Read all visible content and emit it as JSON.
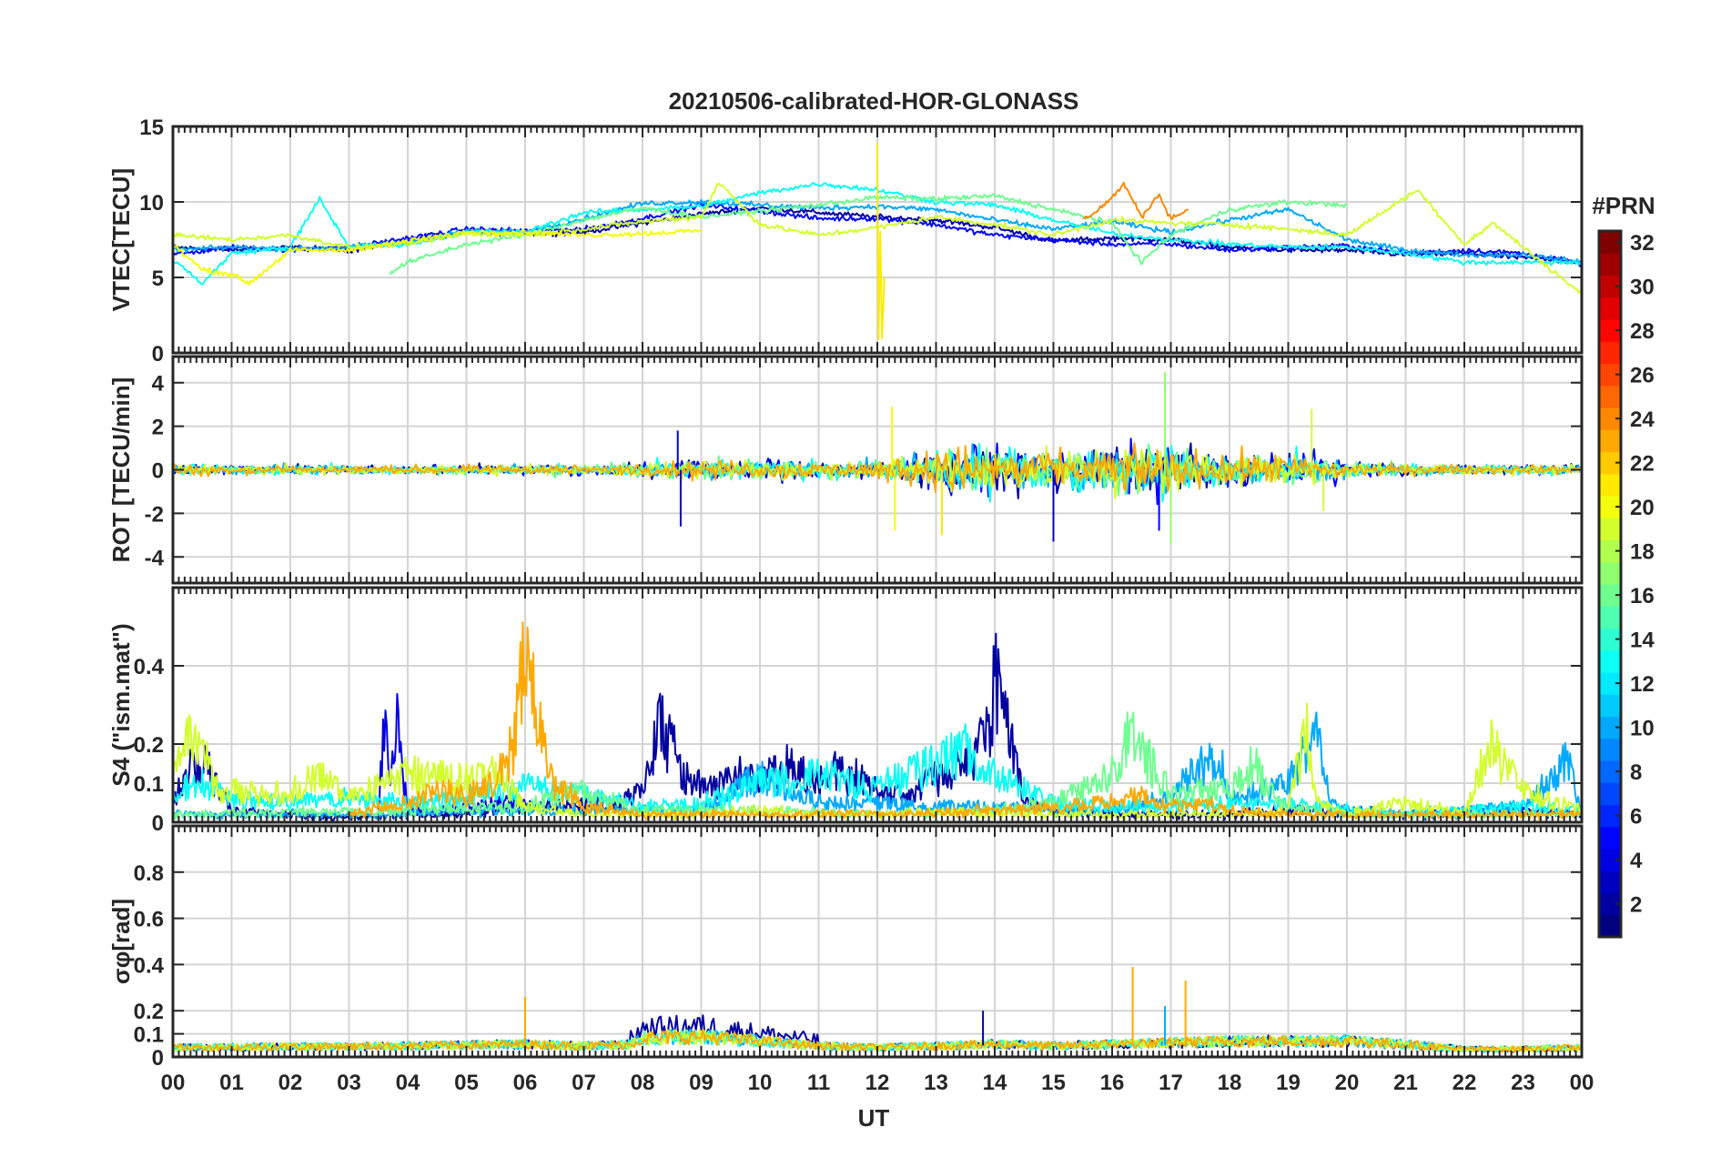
{
  "figure": {
    "title": "20210506-calibrated-HOR-GLONASS",
    "xlabel": "UT",
    "x_ticklabels": [
      "00",
      "01",
      "02",
      "03",
      "04",
      "05",
      "06",
      "07",
      "08",
      "09",
      "10",
      "11",
      "12",
      "13",
      "14",
      "15",
      "16",
      "17",
      "18",
      "19",
      "20",
      "21",
      "22",
      "23",
      "00"
    ]
  },
  "colorbar": {
    "title": "#PRN",
    "range": [
      1,
      32
    ],
    "ticks": [
      2,
      4,
      6,
      8,
      10,
      12,
      14,
      16,
      18,
      20,
      22,
      24,
      26,
      28,
      30,
      32
    ],
    "colormap": "jet",
    "levels": 32
  },
  "chart_data": [
    {
      "type": "line",
      "panel": "VTEC",
      "ylabel": "VTEC[TECU]",
      "ylim": [
        0,
        15
      ],
      "yticks": [
        0,
        5,
        10,
        15
      ],
      "xlim_hours": [
        0,
        24
      ],
      "grid": true,
      "series": [
        {
          "prn": 2,
          "x": [
            0,
            1,
            2,
            3,
            4,
            5,
            6,
            7,
            8,
            9,
            10,
            11,
            12,
            13,
            14,
            15,
            16,
            17,
            18,
            19,
            20,
            21,
            22,
            23,
            24
          ],
          "y": [
            7.0,
            6.8,
            7.0,
            6.8,
            7.4,
            8.0,
            7.9,
            8.0,
            8.6,
            9.2,
            9.6,
            9.3,
            9.0,
            8.8,
            8.3,
            7.4,
            7.6,
            7.5,
            7.0,
            6.8,
            6.8,
            6.5,
            6.6,
            6.3,
            6.0
          ]
        },
        {
          "prn": 5,
          "x": [
            0,
            1,
            2,
            3,
            4,
            5,
            6,
            7,
            8,
            9,
            10,
            11,
            12,
            13,
            14,
            15,
            16,
            17,
            18,
            19,
            20,
            21,
            22,
            23,
            24
          ],
          "y": [
            6.5,
            7.0,
            6.8,
            7.0,
            7.6,
            8.2,
            8.1,
            8.2,
            8.9,
            9.8,
            9.4,
            8.9,
            8.9,
            8.5,
            7.8,
            7.5,
            7.2,
            7.2,
            6.8,
            7.0,
            7.1,
            6.6,
            6.8,
            6.6,
            5.9
          ]
        },
        {
          "prn": 10,
          "x": [
            0,
            1,
            2,
            3,
            4,
            5,
            6,
            7,
            8,
            9,
            10,
            11,
            12,
            13,
            14,
            15,
            16,
            17,
            18,
            19,
            20,
            21,
            22,
            23,
            24
          ],
          "y": [
            6.8,
            7.0,
            6.9,
            7.0,
            7.3,
            8.1,
            8.0,
            8.9,
            9.9,
            10.0,
            9.8,
            9.6,
            9.7,
            9.5,
            8.8,
            8.2,
            8.7,
            8.0,
            8.8,
            9.5,
            7.5,
            6.8,
            6.5,
            6.5,
            6.0
          ]
        },
        {
          "prn": 13,
          "x": [
            0,
            0.5,
            1,
            2,
            2.5,
            3,
            4,
            5,
            6,
            7,
            8,
            9,
            10,
            11,
            12,
            13,
            14,
            15,
            16,
            17,
            18,
            19,
            20,
            21,
            22,
            23,
            24
          ],
          "y": [
            6.2,
            4.6,
            6.6,
            7.0,
            10.2,
            7.0,
            7.2,
            8.0,
            8.0,
            9.3,
            9.5,
            9.7,
            10.6,
            11.2,
            10.8,
            10.0,
            9.8,
            8.8,
            7.9,
            7.5,
            7.2,
            7.0,
            7.0,
            6.6,
            6.0,
            6.0,
            6.0
          ]
        },
        {
          "prn": 16,
          "x": [
            3.7,
            4,
            5,
            6,
            7,
            8,
            9,
            10,
            11,
            12,
            13,
            14,
            15,
            16,
            16.5,
            17,
            18,
            19,
            20
          ],
          "y": [
            5.3,
            6.0,
            7.2,
            7.8,
            8.8,
            9.6,
            9.0,
            9.4,
            9.8,
            10.3,
            10.2,
            10.4,
            9.5,
            8.6,
            6.0,
            7.8,
            9.5,
            10.0,
            9.8
          ]
        },
        {
          "prn": 19,
          "x": [
            0,
            1,
            2,
            3,
            4,
            5,
            6,
            7,
            8,
            9,
            9.3,
            10,
            11,
            12,
            13,
            14,
            15,
            16,
            17,
            18,
            19,
            20,
            21.2,
            22,
            22.5,
            23,
            24
          ],
          "y": [
            7.8,
            7.5,
            7.8,
            7.0,
            7.2,
            7.9,
            7.8,
            8.2,
            8.7,
            9.0,
            11.3,
            8.5,
            7.8,
            8.3,
            9.0,
            8.5,
            7.8,
            8.8,
            8.6,
            8.5,
            8.2,
            7.8,
            10.8,
            7.2,
            8.6,
            7.0,
            3.9
          ]
        },
        {
          "prn": 20,
          "x": [
            0,
            0.5,
            1,
            1.3,
            2,
            3,
            4,
            5,
            6,
            7,
            8,
            9
          ],
          "y": [
            7.2,
            5.5,
            5.2,
            4.6,
            6.8,
            6.8,
            7.4,
            8.0,
            8.0,
            7.8,
            7.9,
            8.1
          ]
        },
        {
          "prn": 24,
          "x": [
            15.5,
            15.8,
            16,
            16.2,
            16.5,
            16.8,
            17,
            17.3
          ],
          "y": [
            8.8,
            9.6,
            10.3,
            11.2,
            9.0,
            10.5,
            8.9,
            9.5
          ]
        },
        {
          "prn": 21,
          "x": [
            12.0,
            12.02,
            12.05,
            12.08,
            12.12
          ],
          "y": [
            14.0,
            1.0,
            8.0,
            1.0,
            5.0
          ]
        }
      ]
    },
    {
      "type": "line",
      "panel": "ROT",
      "ylabel": "ROT [TECU/min]",
      "ylim": [
        -5.2,
        5.2
      ],
      "yticks": [
        -4,
        -2,
        0,
        2,
        4
      ],
      "xlim_hours": [
        0,
        24
      ],
      "grid": true,
      "noise_profile_hours": [
        0,
        2,
        4,
        6,
        6.5,
        7,
        8,
        9,
        10,
        11,
        12,
        12.5,
        13,
        13.5,
        14,
        14.5,
        15,
        16,
        16.5,
        17,
        17.5,
        18,
        19,
        19.5,
        20,
        21,
        22,
        23,
        24
      ],
      "noise_profile_amplitude": [
        0.35,
        0.3,
        0.25,
        0.3,
        0.4,
        0.3,
        0.45,
        0.6,
        0.6,
        0.55,
        0.6,
        0.9,
        1.3,
        1.6,
        1.5,
        1.3,
        1.1,
        1.4,
        1.6,
        1.5,
        1.1,
        1.0,
        1.1,
        0.9,
        0.5,
        0.35,
        0.3,
        0.3,
        0.3
      ],
      "spikes": [
        {
          "x": 8.65,
          "y": -2.6,
          "prn": 3
        },
        {
          "x": 8.6,
          "y": 1.8,
          "prn": 3
        },
        {
          "x": 12.25,
          "y": 2.9,
          "prn": 20
        },
        {
          "x": 12.3,
          "y": -2.8,
          "prn": 20
        },
        {
          "x": 13.1,
          "y": -3.0,
          "prn": 21
        },
        {
          "x": 15.0,
          "y": -3.3,
          "prn": 3
        },
        {
          "x": 16.8,
          "y": -2.8,
          "prn": 5
        },
        {
          "x": 16.9,
          "y": 4.5,
          "prn": 17
        },
        {
          "x": 17.0,
          "y": -3.4,
          "prn": 17
        },
        {
          "x": 19.4,
          "y": 2.8,
          "prn": 19
        },
        {
          "x": 19.6,
          "y": -1.9,
          "prn": 19
        }
      ],
      "series_prns": [
        2,
        5,
        10,
        13,
        16,
        19,
        23
      ]
    },
    {
      "type": "line",
      "panel": "S4",
      "ylabel": "S4 (\"ism.mat\")",
      "ylim": [
        0,
        0.6
      ],
      "yticks": [
        0,
        0.1,
        0.2,
        0.4
      ],
      "xlim_hours": [
        0,
        24
      ],
      "grid": true,
      "series": [
        {
          "prn": 2,
          "x": [
            0,
            0.2,
            0.5,
            1,
            3,
            4,
            5,
            6,
            7,
            7.5,
            8,
            8.3,
            8.5,
            8.8,
            9.3,
            9.7,
            10,
            10.5,
            11,
            11.3,
            11.7,
            12,
            12.5,
            13,
            13.5,
            13.9,
            14,
            14.2,
            14.5,
            15,
            16,
            17,
            18,
            19,
            20,
            21,
            22,
            23,
            24
          ],
          "y": [
            0.05,
            0.13,
            0.16,
            0.03,
            0.01,
            0.02,
            0.02,
            0.04,
            0.05,
            0.04,
            0.08,
            0.25,
            0.19,
            0.1,
            0.09,
            0.13,
            0.11,
            0.14,
            0.1,
            0.13,
            0.11,
            0.08,
            0.07,
            0.12,
            0.14,
            0.24,
            0.38,
            0.27,
            0.05,
            0.03,
            0.02,
            0.02,
            0.02,
            0.03,
            0.03,
            0.02,
            0.02,
            0.03,
            0.02
          ]
        },
        {
          "prn": 4,
          "x": [
            3.5,
            3.6,
            3.7,
            3.8,
            4,
            5,
            6
          ],
          "y": [
            0.02,
            0.25,
            0.08,
            0.26,
            0.03,
            0.04,
            0.05
          ]
        },
        {
          "prn": 10,
          "x": [
            0,
            1,
            2,
            3,
            4,
            5,
            6,
            8,
            9,
            10,
            11,
            12,
            13,
            14,
            15,
            16,
            17,
            17.8,
            18,
            19,
            19.5,
            19.7,
            20,
            21,
            22,
            23,
            23.8,
            24
          ],
          "y": [
            0.02,
            0.02,
            0.02,
            0.02,
            0.02,
            0.03,
            0.03,
            0.03,
            0.03,
            0.12,
            0.05,
            0.05,
            0.04,
            0.04,
            0.03,
            0.03,
            0.07,
            0.18,
            0.06,
            0.1,
            0.23,
            0.05,
            0.03,
            0.02,
            0.03,
            0.04,
            0.16,
            0.04
          ]
        },
        {
          "prn": 13,
          "x": [
            0,
            0.5,
            1,
            2,
            3,
            4,
            5,
            6,
            8,
            9,
            10,
            11,
            12,
            13,
            13.5,
            14,
            15,
            16,
            17,
            18,
            19,
            20,
            21,
            22,
            23,
            24
          ],
          "y": [
            0.08,
            0.1,
            0.06,
            0.05,
            0.06,
            0.05,
            0.06,
            0.1,
            0.04,
            0.05,
            0.1,
            0.12,
            0.09,
            0.15,
            0.19,
            0.12,
            0.05,
            0.04,
            0.04,
            0.05,
            0.05,
            0.03,
            0.02,
            0.03,
            0.04,
            0.03
          ]
        },
        {
          "prn": 16,
          "x": [
            0,
            4,
            6,
            7,
            8,
            10,
            12,
            14,
            15,
            16,
            16.3,
            16.7,
            17,
            18,
            18.4,
            18.8,
            19,
            20,
            21,
            22,
            24
          ],
          "y": [
            0.02,
            0.03,
            0.04,
            0.08,
            0.03,
            0.03,
            0.02,
            0.03,
            0.05,
            0.12,
            0.22,
            0.14,
            0.07,
            0.08,
            0.15,
            0.05,
            0.04,
            0.02,
            0.02,
            0.02,
            0.02
          ]
        },
        {
          "prn": 19,
          "x": [
            0,
            0.3,
            0.5,
            0.8,
            1,
            1.5,
            2,
            2.5,
            3,
            4,
            5,
            5.5,
            6,
            7,
            8,
            9,
            10,
            11,
            12,
            13,
            14,
            15,
            16,
            17,
            18,
            19,
            19.3,
            19.5,
            20,
            21,
            22,
            22.5,
            22.6,
            23,
            24
          ],
          "y": [
            0.1,
            0.22,
            0.18,
            0.06,
            0.08,
            0.07,
            0.08,
            0.12,
            0.06,
            0.12,
            0.11,
            0.13,
            0.04,
            0.02,
            0.02,
            0.02,
            0.03,
            0.02,
            0.02,
            0.03,
            0.02,
            0.02,
            0.02,
            0.02,
            0.02,
            0.03,
            0.25,
            0.05,
            0.02,
            0.05,
            0.02,
            0.22,
            0.16,
            0.08,
            0.03
          ]
        },
        {
          "prn": 23,
          "x": [
            3,
            4,
            4.5,
            5,
            5.5,
            5.8,
            6,
            6.1,
            6.2,
            6.5,
            7,
            8,
            10,
            12,
            14,
            15,
            16,
            16.5,
            17,
            17.5,
            18,
            19,
            20,
            24
          ],
          "y": [
            0.02,
            0.05,
            0.08,
            0.07,
            0.1,
            0.2,
            0.45,
            0.5,
            0.25,
            0.1,
            0.04,
            0.02,
            0.02,
            0.02,
            0.03,
            0.04,
            0.05,
            0.07,
            0.04,
            0.05,
            0.03,
            0.02,
            0.02,
            0.02
          ]
        }
      ]
    },
    {
      "type": "line",
      "panel": "SigmaPhi",
      "ylabel": "σφ[rad]",
      "ylim": [
        0,
        1.0
      ],
      "yticks": [
        0,
        0.1,
        0.2,
        0.4,
        0.6,
        0.8
      ],
      "xlim_hours": [
        0,
        24
      ],
      "grid": true,
      "noise_profile_hours": [
        0,
        4,
        6,
        7,
        7.8,
        8,
        9,
        10,
        11,
        12,
        13,
        14,
        15,
        16,
        17,
        18,
        19,
        20,
        21,
        22,
        23,
        24
      ],
      "noise_profile_base": [
        0.06,
        0.07,
        0.08,
        0.07,
        0.08,
        0.12,
        0.13,
        0.1,
        0.07,
        0.06,
        0.07,
        0.08,
        0.07,
        0.08,
        0.09,
        0.1,
        0.1,
        0.1,
        0.08,
        0.05,
        0.05,
        0.06
      ],
      "spikes": [
        {
          "x": 6.0,
          "y": 0.26,
          "prn": 23
        },
        {
          "x": 16.35,
          "y": 0.39,
          "prn": 23
        },
        {
          "x": 17.25,
          "y": 0.33,
          "prn": 23
        },
        {
          "x": 13.8,
          "y": 0.2,
          "prn": 2
        },
        {
          "x": 16.9,
          "y": 0.22,
          "prn": 10
        }
      ],
      "series_prns": [
        2,
        10,
        13,
        16,
        19,
        23
      ]
    }
  ]
}
